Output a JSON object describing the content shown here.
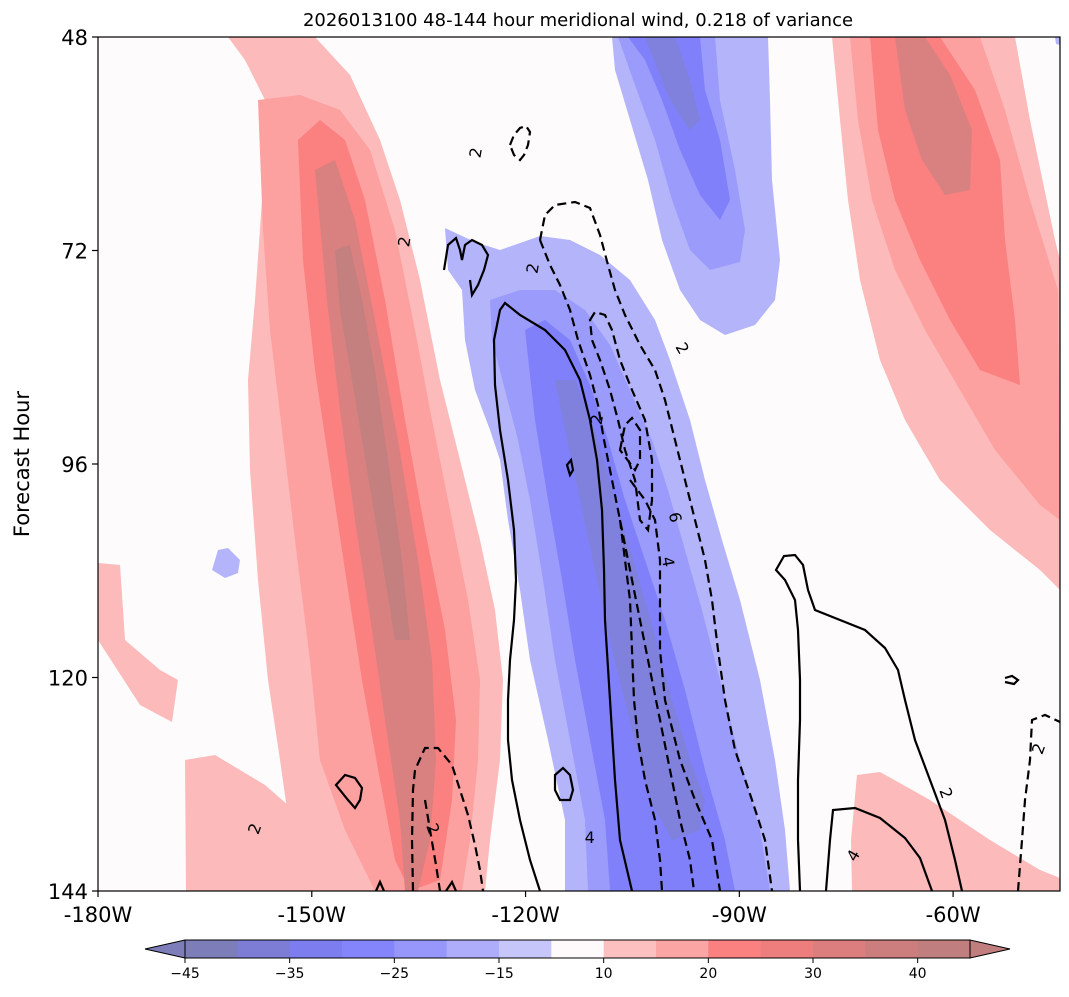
{
  "chart_data": {
    "type": "filled-contour",
    "title": "2026013100 48-144 hour meridional wind, 0.218 of variance",
    "xlabel": "",
    "ylabel": "Forecast Hour",
    "x_range": [
      -180,
      -45
    ],
    "y_range": [
      48,
      144
    ],
    "x_ticks": [
      {
        "value": -180,
        "label": "-180W"
      },
      {
        "value": -150,
        "label": "-150W"
      },
      {
        "value": -120,
        "label": "-120W"
      },
      {
        "value": -90,
        "label": "-90W"
      },
      {
        "value": -60,
        "label": "-60W"
      }
    ],
    "y_ticks": [
      {
        "value": 48,
        "label": "48"
      },
      {
        "value": 72,
        "label": "72"
      },
      {
        "value": 96,
        "label": "96"
      },
      {
        "value": 120,
        "label": "120"
      },
      {
        "value": 144,
        "label": "144"
      }
    ],
    "colorbar": {
      "levels": [
        -45,
        -40,
        -35,
        -30,
        -25,
        -20,
        -15,
        -10,
        10,
        15,
        20,
        25,
        30,
        35,
        40,
        45
      ],
      "tick_values": [
        -45,
        -35,
        -25,
        -15,
        10,
        20,
        30,
        40
      ],
      "tick_labels": [
        "−45",
        "−35",
        "−25",
        "−15",
        "10",
        "20",
        "30",
        "40"
      ],
      "colors": [
        "#7d7dba",
        "#7d7dd6",
        "#7d7df0",
        "#8585fb",
        "#9797fb",
        "#adadfb",
        "#c6c6fb",
        "#fefafb",
        "#fcc0c0",
        "#fca5a5",
        "#fb8080",
        "#ee7e7e",
        "#dc7e7e",
        "#cc7e7e",
        "#c07e7e"
      ],
      "extend": "both",
      "under_color": "#7d7dba",
      "over_color": "#c07e7e"
    },
    "fill_colors": {
      "neg1": "#b4b4fb",
      "neg2": "#9b9bfb",
      "neg3": "#8080fb",
      "neg4": "#8080dd",
      "pos1": "#fcbaba",
      "pos2": "#fca0a0",
      "pos3": "#fb8080",
      "pos4": "#d98080",
      "pos5": "#c47f7f"
    },
    "contour_labels": [
      {
        "text": "2",
        "x": -127,
        "y": 61,
        "angle": -80
      },
      {
        "text": "2",
        "x": -137,
        "y": 71,
        "angle": -80
      },
      {
        "text": "2",
        "x": -119,
        "y": 74,
        "angle": -80
      },
      {
        "text": "2",
        "x": -98,
        "y": 83,
        "angle": 60
      },
      {
        "text": "2",
        "x": -110,
        "y": 91,
        "angle": -80
      },
      {
        "text": "6",
        "x": -99,
        "y": 102,
        "angle": 80
      },
      {
        "text": "4",
        "x": -100,
        "y": 107,
        "angle": 80
      },
      {
        "text": "2",
        "x": -61,
        "y": 133,
        "angle": 70
      },
      {
        "text": "2",
        "x": -48,
        "y": 128,
        "angle": -70
      },
      {
        "text": "2",
        "x": -158,
        "y": 137,
        "angle": -70
      },
      {
        "text": "2",
        "x": -133,
        "y": 137,
        "angle": 70
      },
      {
        "text": "4",
        "x": -111,
        "y": 138,
        "angle": 0
      },
      {
        "text": "4",
        "x": -74,
        "y": 140,
        "angle": -60
      }
    ]
  }
}
